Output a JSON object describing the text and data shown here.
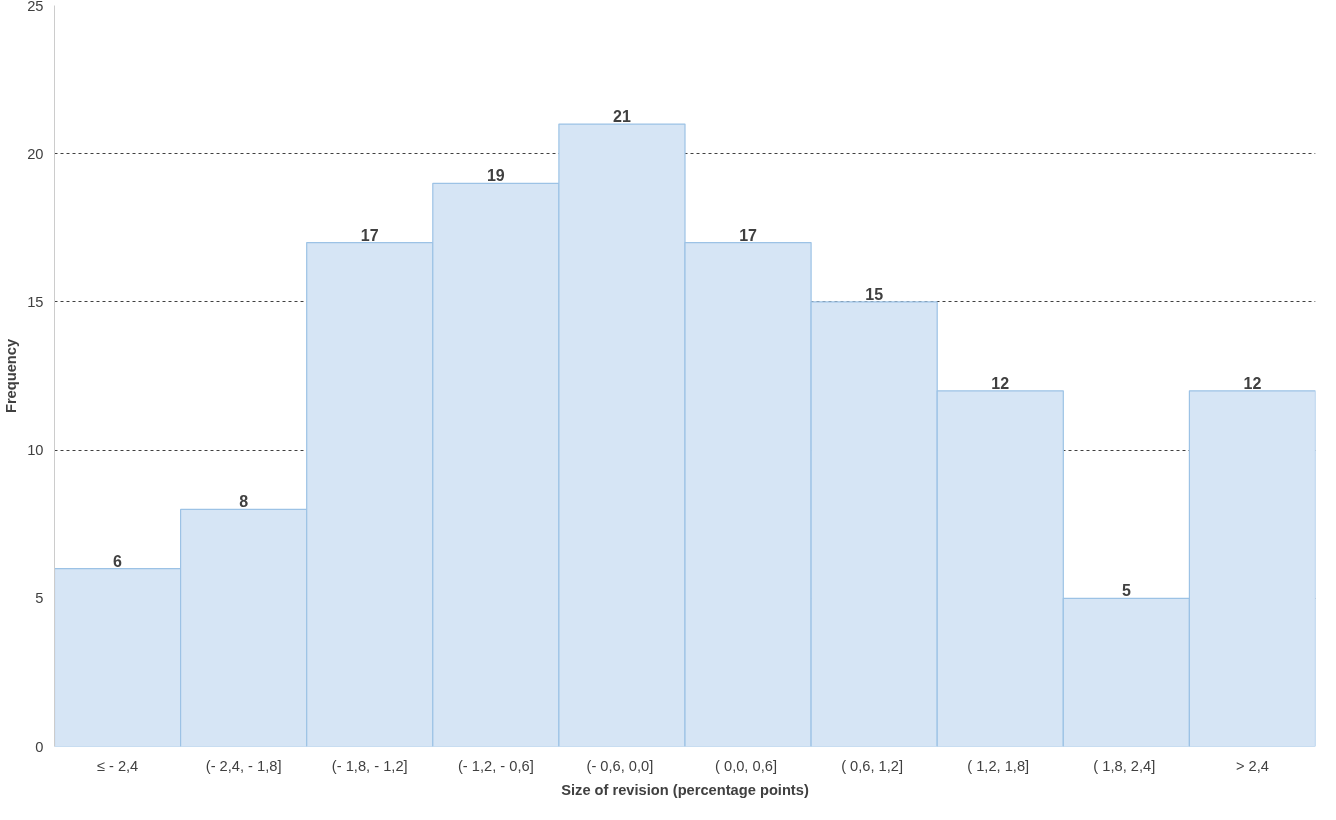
{
  "chart_data": {
    "type": "bar",
    "xlabel": "Size of revision (percentage points)",
    "ylabel": "Frequency",
    "categories": [
      "≤ - 2,4",
      "(- 2,4, - 1,8]",
      "(- 1,8, - 1,2]",
      "(- 1,2, - 0,6]",
      "(- 0,6,  0,0]",
      "( 0,0,  0,6]",
      "( 0,6,  1,2]",
      "( 1,2,  1,8]",
      "( 1,8,  2,4]",
      "> 2,4"
    ],
    "values": [
      6,
      8,
      17,
      19,
      21,
      17,
      15,
      12,
      5,
      12
    ],
    "color": "#d6e5f5",
    "ylim": [
      0,
      25
    ],
    "yticks": [
      0,
      5,
      10,
      15,
      20,
      25
    ],
    "grid": "y",
    "data_labels": true
  }
}
